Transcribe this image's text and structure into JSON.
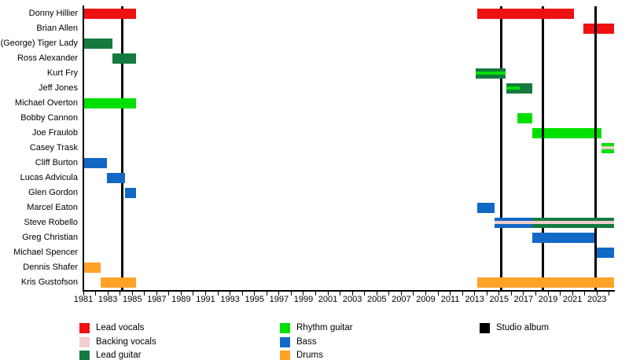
{
  "chart_data": {
    "type": "timeline",
    "title": "",
    "xlim": [
      1981,
      2024.4
    ],
    "x_tick_label_years": [
      1981,
      1983,
      1985,
      1987,
      1989,
      1991,
      1993,
      1995,
      1997,
      1999,
      2001,
      2003,
      2005,
      2007,
      2009,
      2011,
      2013,
      2015,
      2017,
      2019,
      2021,
      2023
    ],
    "x_minor_tick_years_range": [
      1981,
      2024
    ],
    "background_color": "#ffffff",
    "roles": {
      "lead_vocals": {
        "label": "Lead vocals",
        "color": "#ed1111"
      },
      "backing_vocals": {
        "label": "Backing vocals",
        "color": "#f2cece"
      },
      "lead_guitar": {
        "label": "Lead guitar",
        "color": "#147a3e"
      },
      "rhythm_guitar": {
        "label": "Rhythm guitar",
        "color": "#00e000"
      },
      "bass": {
        "label": "Bass",
        "color": "#1268c6"
      },
      "drums": {
        "label": "Drums",
        "color": "#ffa226"
      },
      "studio_album": {
        "label": "Studio album",
        "color": "#000000"
      }
    },
    "albums": {
      "legend_label": "Studio album",
      "years": [
        1984.2,
        2015.2,
        2018.6,
        2022.9
      ]
    },
    "members": [
      {
        "name": "Donny Hillier",
        "segments": [
          {
            "start": 1981.0,
            "end": 1985.3,
            "role": "lead_vocals"
          },
          {
            "start": 2013.2,
            "end": 2021.1,
            "role": "lead_vocals"
          }
        ]
      },
      {
        "name": "Brian Allen",
        "segments": [
          {
            "start": 2021.9,
            "end": 2024.4,
            "role": "lead_vocals",
            "behind_albums": true
          }
        ]
      },
      {
        "name": "(George) Tiger Lady",
        "segments": [
          {
            "start": 1981.0,
            "end": 1983.4,
            "role": "lead_guitar"
          }
        ]
      },
      {
        "name": "Ross Alexander",
        "segments": [
          {
            "start": 1983.4,
            "end": 1985.3,
            "role": "lead_guitar"
          }
        ]
      },
      {
        "name": "Kurt Fry",
        "segments": [
          {
            "start": 2013.1,
            "end": 2015.5,
            "role": "lead_guitar",
            "stripe": "rhythm_guitar"
          }
        ]
      },
      {
        "name": "Jeff Jones",
        "segments": [
          {
            "start": 2015.6,
            "end": 2016.7,
            "role": "lead_guitar",
            "stripe": "rhythm_guitar"
          },
          {
            "start": 2016.7,
            "end": 2017.7,
            "role": "lead_guitar"
          }
        ]
      },
      {
        "name": "Michael Overton",
        "segments": [
          {
            "start": 1981.0,
            "end": 1985.3,
            "role": "rhythm_guitar"
          }
        ]
      },
      {
        "name": "Bobby Cannon",
        "segments": [
          {
            "start": 2016.5,
            "end": 2017.7,
            "role": "rhythm_guitar"
          }
        ]
      },
      {
        "name": "Joe Fraulob",
        "segments": [
          {
            "start": 2017.7,
            "end": 2023.4,
            "role": "rhythm_guitar",
            "behind_albums": true
          }
        ]
      },
      {
        "name": "Casey Trask",
        "segments": [
          {
            "start": 2023.4,
            "end": 2024.4,
            "role": "rhythm_guitar",
            "stripe": "backing_vocals"
          }
        ]
      },
      {
        "name": "Cliff Burton",
        "segments": [
          {
            "start": 1981.0,
            "end": 1982.9,
            "role": "bass"
          }
        ]
      },
      {
        "name": "Lucas Advicula",
        "segments": [
          {
            "start": 1982.9,
            "end": 1984.4,
            "role": "bass"
          }
        ]
      },
      {
        "name": "Glen Gordon",
        "segments": [
          {
            "start": 1984.4,
            "end": 1985.3,
            "role": "bass"
          }
        ]
      },
      {
        "name": "Marcel Eaton",
        "segments": [
          {
            "start": 2013.2,
            "end": 2014.6,
            "role": "bass"
          }
        ]
      },
      {
        "name": "Steve Robello",
        "segments": [
          {
            "start": 2014.6,
            "end": 2017.7,
            "role": "bass",
            "stripe": "backing_vocals"
          },
          {
            "start": 2017.7,
            "end": 2024.4,
            "role": "lead_guitar",
            "stripe": "backing_vocals"
          }
        ]
      },
      {
        "name": "Greg Christian",
        "segments": [
          {
            "start": 2017.7,
            "end": 2022.8,
            "role": "bass"
          }
        ]
      },
      {
        "name": "Michael Spencer",
        "segments": [
          {
            "start": 2023.0,
            "end": 2024.4,
            "role": "bass"
          }
        ]
      },
      {
        "name": "Dennis Shafer",
        "segments": [
          {
            "start": 1981.0,
            "end": 1982.4,
            "role": "drums"
          }
        ]
      },
      {
        "name": "Kris Gustofson",
        "segments": [
          {
            "start": 1982.4,
            "end": 1985.3,
            "role": "drums"
          },
          {
            "start": 2013.2,
            "end": 2024.4,
            "role": "drums"
          }
        ]
      }
    ],
    "legend": {
      "columns": [
        {
          "items": [
            "lead_vocals",
            "backing_vocals",
            "lead_guitar"
          ]
        },
        {
          "items": [
            "rhythm_guitar",
            "bass",
            "drums"
          ]
        },
        {
          "items": [
            "studio_album"
          ]
        }
      ]
    }
  }
}
